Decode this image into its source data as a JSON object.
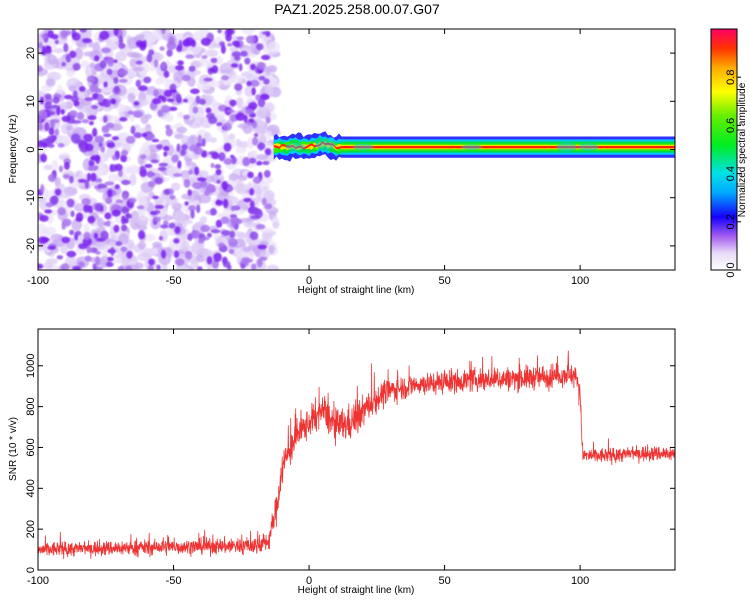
{
  "title": "PAZ1.2025.258.00.07.G07",
  "chart_data": [
    {
      "type": "heatmap",
      "xlabel": "Height of straight line (km)",
      "ylabel": "Frequency (Hz)",
      "xlim": [
        -100,
        135
      ],
      "ylim": [
        -25,
        25
      ],
      "xticks": [
        -100,
        -50,
        0,
        50,
        100
      ],
      "yticks": [
        -20,
        -10,
        0,
        10,
        20
      ],
      "colorbar": {
        "label": "Normalized spectral amplitude",
        "range": [
          0,
          1
        ],
        "ticks": [
          "0.0",
          "0.2",
          "0.4",
          "0.6",
          "0.8"
        ],
        "tick_values": [
          0.0,
          0.2,
          0.4,
          0.6,
          0.8
        ]
      },
      "features": {
        "noise_region_x": [
          -100,
          -15
        ],
        "signal_start_x": -13,
        "signal_frequency_by_height": [
          [
            -13,
            0.5
          ],
          [
            0,
            0.6
          ],
          [
            5,
            1.2
          ],
          [
            10,
            0.5
          ],
          [
            50,
            0.5
          ],
          [
            100,
            0.5
          ],
          [
            135,
            0.5
          ]
        ]
      },
      "grid": false
    },
    {
      "type": "line",
      "xlabel": "Height of straight line (km)",
      "ylabel": "SNR (10 * v/v)",
      "xlim": [
        -100,
        135
      ],
      "ylim": [
        0,
        1180
      ],
      "xticks": [
        -100,
        -50,
        0,
        50,
        100
      ],
      "yticks": [
        0,
        200,
        400,
        600,
        800,
        1000
      ],
      "color": "#ee3333",
      "series": [
        {
          "x": [
            -100,
            -80,
            -60,
            -40,
            -20,
            -15,
            -12,
            -10,
            -5,
            0,
            5,
            10,
            15,
            20,
            25,
            30,
            40,
            50,
            60,
            70,
            80,
            90,
            95,
            99,
            100,
            101,
            110,
            120,
            135
          ],
          "y": [
            100,
            105,
            110,
            115,
            120,
            140,
            300,
            500,
            650,
            720,
            780,
            700,
            720,
            780,
            840,
            880,
            910,
            920,
            930,
            935,
            940,
            950,
            960,
            940,
            860,
            560,
            560,
            570,
            570
          ],
          "noise_amplitude": [
            60,
            60,
            60,
            60,
            70,
            80,
            120,
            140,
            130,
            120,
            120,
            140,
            140,
            120,
            110,
            100,
            90,
            90,
            90,
            90,
            95,
            95,
            90,
            90,
            90,
            60,
            60,
            60,
            60
          ]
        }
      ],
      "grid": false
    }
  ]
}
